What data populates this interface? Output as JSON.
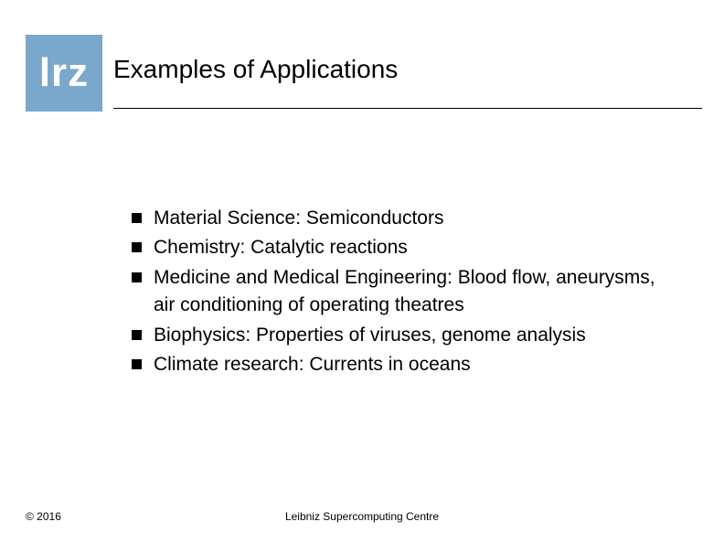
{
  "logo": {
    "text": "lrz",
    "background_color": "#7aa8cc",
    "text_color": "#ffffff"
  },
  "title": "Examples of Applications",
  "bullets": [
    "Material Science: Semiconductors",
    "Chemistry: Catalytic reactions",
    "Medicine and Medical Engineering: Blood flow, aneurysms, air conditioning of operating theatres",
    "Biophysics: Properties of viruses, genome analysis",
    "Climate research: Currents in oceans"
  ],
  "footer": {
    "left": "© 2016",
    "center": "Leibniz Supercomputing Centre"
  },
  "colors": {
    "page_background": "#ffffff",
    "text": "#000000",
    "rule": "#000000",
    "bullet_square": "#000000"
  },
  "typography": {
    "title_fontsize": 28,
    "body_fontsize": 21,
    "footer_fontsize": 12,
    "logo_fontsize": 44,
    "font_family": "Arial"
  }
}
